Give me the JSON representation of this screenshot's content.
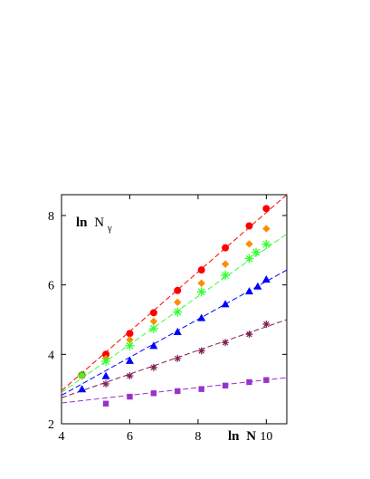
{
  "chart_data": {
    "type": "scatter",
    "title": "",
    "xlabel": {
      "prefix": "ln",
      "main": "N"
    },
    "ylabel": {
      "prefix": "ln",
      "main": "N",
      "subscript": "γ"
    },
    "xlim": [
      4,
      10.6
    ],
    "ylim": [
      2,
      8.6
    ],
    "x_ticks": [
      4,
      6,
      8,
      10
    ],
    "y_ticks": [
      2,
      4,
      6,
      8
    ],
    "grid": false,
    "legend": "none",
    "series": [
      {
        "marker": "circle",
        "color": "#ff0000",
        "points": [
          [
            4.6,
            3.4
          ],
          [
            5.3,
            4.0
          ],
          [
            6.0,
            4.6
          ],
          [
            6.7,
            5.2
          ],
          [
            7.4,
            5.84
          ],
          [
            8.1,
            6.43
          ],
          [
            8.8,
            7.07
          ],
          [
            9.5,
            7.7
          ],
          [
            10.0,
            8.2
          ]
        ],
        "fit": [
          [
            4.0,
            2.95
          ],
          [
            10.6,
            8.6
          ]
        ]
      },
      {
        "marker": "diamond",
        "color": "#ff8c00",
        "points": [
          [
            4.6,
            3.38
          ],
          [
            5.3,
            3.88
          ],
          [
            6.0,
            4.42
          ],
          [
            6.7,
            4.95
          ],
          [
            7.4,
            5.5
          ],
          [
            8.1,
            6.05
          ],
          [
            8.8,
            6.6
          ],
          [
            9.5,
            7.18
          ],
          [
            10.0,
            7.62
          ]
        ]
      },
      {
        "marker": "star",
        "color": "#33ff33",
        "points": [
          [
            4.6,
            3.4
          ],
          [
            5.3,
            3.8
          ],
          [
            6.0,
            4.25
          ],
          [
            6.7,
            4.74
          ],
          [
            7.4,
            5.22
          ],
          [
            8.1,
            5.8
          ],
          [
            8.8,
            6.28
          ],
          [
            9.5,
            6.76
          ],
          [
            9.7,
            6.94
          ],
          [
            10.0,
            7.17
          ]
        ],
        "fit": [
          [
            4.0,
            2.9
          ],
          [
            10.6,
            7.47
          ]
        ]
      },
      {
        "marker": "triangle",
        "color": "#0000ff",
        "points": [
          [
            4.6,
            3.0
          ],
          [
            5.3,
            3.38
          ],
          [
            6.0,
            3.82
          ],
          [
            6.7,
            4.25
          ],
          [
            7.4,
            4.65
          ],
          [
            8.1,
            5.05
          ],
          [
            8.8,
            5.45
          ],
          [
            9.5,
            5.82
          ],
          [
            9.75,
            5.96
          ],
          [
            10.0,
            6.16
          ]
        ],
        "fit": [
          [
            4.0,
            2.82
          ],
          [
            10.6,
            6.43
          ]
        ]
      },
      {
        "marker": "asterisk",
        "color": "#7f2055",
        "points": [
          [
            5.3,
            3.15
          ],
          [
            6.0,
            3.38
          ],
          [
            6.7,
            3.62
          ],
          [
            7.4,
            3.88
          ],
          [
            8.1,
            4.1
          ],
          [
            8.8,
            4.34
          ],
          [
            9.5,
            4.58
          ],
          [
            10.0,
            4.87
          ]
        ],
        "fit": [
          [
            4.0,
            2.75
          ],
          [
            10.6,
            5.0
          ]
        ]
      },
      {
        "marker": "square",
        "color": "#9932cc",
        "points": [
          [
            5.3,
            2.58
          ],
          [
            6.0,
            2.78
          ],
          [
            6.7,
            2.88
          ],
          [
            7.4,
            2.94
          ],
          [
            8.1,
            3.0
          ],
          [
            8.8,
            3.1
          ],
          [
            9.5,
            3.2
          ],
          [
            10.0,
            3.26
          ]
        ],
        "fit": [
          [
            4.0,
            2.6
          ],
          [
            10.6,
            3.33
          ]
        ]
      }
    ]
  }
}
